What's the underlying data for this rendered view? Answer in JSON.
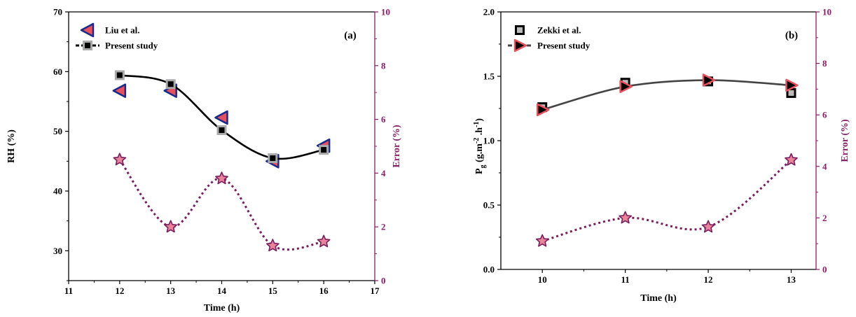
{
  "chart_data": [
    {
      "type": "scatter",
      "panel_label": "(a)",
      "xlabel": "Time (h)",
      "ylabel": "RH (%)",
      "y2label": "Error (%)",
      "xlim": [
        11,
        17
      ],
      "ylim": [
        25,
        70
      ],
      "y2lim": [
        0,
        10
      ],
      "xticks": [
        11,
        12,
        13,
        14,
        15,
        16,
        17
      ],
      "yticks": [
        30,
        40,
        50,
        60,
        70
      ],
      "y2ticks": [
        0,
        2,
        4,
        6,
        8,
        10
      ],
      "legend_position": "top-left",
      "series": [
        {
          "name": "Liu et al.",
          "marker": "triangle-left",
          "color": "#e8505b",
          "edge": "#1a2a8c",
          "x": [
            12,
            13,
            14,
            15,
            16
          ],
          "y": [
            56.8,
            56.8,
            52.3,
            45,
            47.6
          ]
        },
        {
          "name": "Present study",
          "marker": "square",
          "color": "#000000",
          "edge": "#aaaaaa",
          "line": "dash-smooth",
          "x": [
            12,
            13,
            14,
            15,
            16
          ],
          "y": [
            59.4,
            57.9,
            50.2,
            45.5,
            46.9
          ]
        },
        {
          "axis": "y2",
          "marker": "star",
          "color": "#e8839a",
          "edge": "#7a1d5e",
          "line": "dotted-smooth",
          "x": [
            12,
            13,
            14,
            15,
            16
          ],
          "y": [
            4.5,
            2.0,
            3.8,
            1.3,
            1.45
          ]
        }
      ]
    },
    {
      "type": "scatter",
      "panel_label": "(b)",
      "xlabel": "Time (h)",
      "ylabel": "P",
      "ylabel_sub": "g",
      "ylabel_rest": " (g.m",
      "ylabel_sup1": "-2",
      "ylabel_mid": " .h",
      "ylabel_sup2": "-1",
      "ylabel_end": ")",
      "y2label": "Error (%)",
      "xlim": [
        9.5,
        13.3
      ],
      "ylim": [
        0,
        2.0
      ],
      "y2lim": [
        0,
        10
      ],
      "xticks": [
        10,
        11,
        12,
        13
      ],
      "yticks": [
        "0.0",
        "0.5",
        "1.0",
        "1.5",
        "2.0"
      ],
      "y2ticks": [
        0,
        2,
        4,
        6,
        8,
        10
      ],
      "legend_position": "top-left",
      "series": [
        {
          "name": "Zekki et al.",
          "marker": "square",
          "color": "#bbbbbb",
          "edge": "#000000",
          "x": [
            10,
            11,
            12,
            13
          ],
          "y": [
            1.26,
            1.45,
            1.46,
            1.37
          ]
        },
        {
          "name": "Present study",
          "marker": "triangle-right",
          "color": "#000000",
          "edge": "#e8505b",
          "line": "solid-smooth",
          "x": [
            10,
            11,
            12,
            13
          ],
          "y": [
            1.24,
            1.42,
            1.47,
            1.43
          ]
        },
        {
          "axis": "y2",
          "marker": "star",
          "color": "#e8839a",
          "edge": "#7a1d5e",
          "line": "dotted-smooth",
          "x": [
            10,
            11,
            12,
            13
          ],
          "y": [
            1.1,
            2.0,
            1.65,
            4.25
          ]
        }
      ]
    }
  ]
}
